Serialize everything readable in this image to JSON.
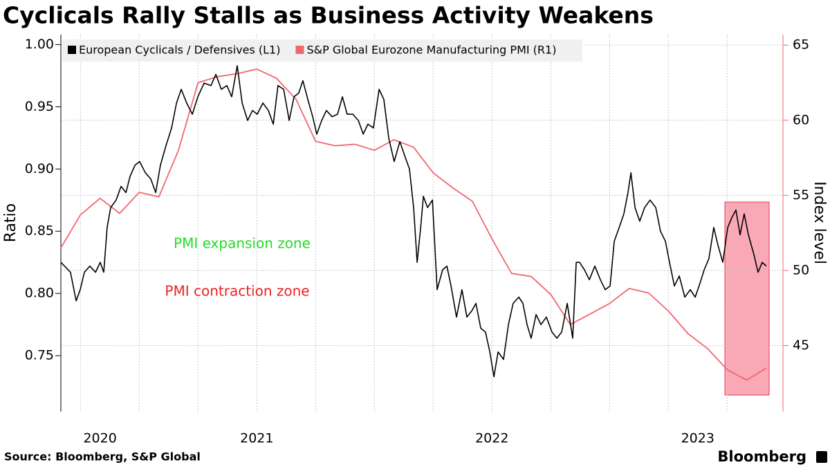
{
  "chart_data": {
    "type": "line",
    "title": "Cyclicals Rally Stalls as Business Activity Weakens",
    "source": "Source: Bloomberg, S&P Global",
    "brand": "Bloomberg",
    "ylabel": "Ratio",
    "y2label": "Index level",
    "legend": "upper left",
    "grid": true,
    "xlim": [
      0,
      36.85
    ],
    "xticks": [
      {
        "value": 2,
        "label": "2020"
      },
      {
        "value": 10,
        "label": "2021"
      },
      {
        "value": 22,
        "label": "2022"
      },
      {
        "value": 32.5,
        "label": "2023"
      }
    ],
    "ylim": [
      0.705,
      1.008
    ],
    "yticks": [
      {
        "value": 1,
        "label": "1.00"
      },
      0.95,
      {
        "value": 0.9,
        "label": "0.90"
      },
      0.85,
      {
        "value": 0.8,
        "label": "0.80"
      },
      0.75
    ],
    "y2lim": [
      40.6,
      65.7
    ],
    "y2ticks": [
      45,
      50,
      55,
      60,
      65
    ],
    "annotations": [
      {
        "text": "PMI expansion zone",
        "color": "#22dd22"
      },
      {
        "text": "PMI contraction zone",
        "color": "#ee2222"
      }
    ],
    "series": [
      {
        "name": "European Cyclicals / Defensives (L1)",
        "color": "#000000",
        "axis": "y",
        "x": [
          0,
          0.25,
          0.49,
          0.78,
          0.99,
          1.2,
          1.48,
          1.77,
          2.01,
          2.19,
          2.36,
          2.54,
          2.82,
          3.07,
          3.32,
          3.53,
          3.78,
          4.02,
          4.31,
          4.59,
          4.84,
          5.08,
          5.37,
          5.65,
          5.9,
          6.14,
          6.42,
          6.71,
          6.99,
          7.31,
          7.66,
          7.91,
          8.19,
          8.47,
          8.72,
          9,
          9.25,
          9.53,
          9.78,
          10.02,
          10.31,
          10.59,
          10.84,
          11.08,
          11.37,
          11.65,
          11.9,
          12.14,
          12.35,
          12.6,
          12.85,
          13.06,
          13.31,
          13.55,
          13.84,
          14.12,
          14.37,
          14.61,
          14.9,
          15.18,
          15.43,
          15.67,
          15.95,
          16.24,
          16.48,
          16.73,
          17.01,
          17.3,
          17.54,
          17.79,
          18,
          18.18,
          18.36,
          18.5,
          18.71,
          18.96,
          19.2,
          19.48,
          19.7,
          19.91,
          20.19,
          20.47,
          20.72,
          20.97,
          21.18,
          21.43,
          21.67,
          21.89,
          22.1,
          22.31,
          22.59,
          22.84,
          23.08,
          23.37,
          23.58,
          23.79,
          24,
          24.25,
          24.5,
          24.78,
          25.06,
          25.31,
          25.56,
          25.84,
          26.12,
          26.3,
          26.47,
          26.72,
          26.97,
          27.25,
          27.53,
          27.78,
          28.03,
          28.24,
          28.49,
          28.73,
          28.94,
          29.09,
          29.3,
          29.54,
          29.79,
          30.07,
          30.36,
          30.6,
          30.85,
          31.06,
          31.31,
          31.56,
          31.84,
          32.12,
          32.37,
          32.61,
          32.83,
          33.07,
          33.32,
          33.53,
          33.78,
          34.03,
          34.24,
          34.45,
          34.66,
          34.87,
          35.09,
          35.37,
          35.58,
          35.79,
          36
        ],
        "values": [
          0.825,
          0.821,
          0.817,
          0.794,
          0.803,
          0.817,
          0.822,
          0.817,
          0.825,
          0.817,
          0.853,
          0.869,
          0.875,
          0.886,
          0.881,
          0.894,
          0.903,
          0.906,
          0.897,
          0.892,
          0.881,
          0.903,
          0.919,
          0.933,
          0.953,
          0.964,
          0.953,
          0.944,
          0.958,
          0.969,
          0.967,
          0.976,
          0.964,
          0.967,
          0.958,
          0.983,
          0.953,
          0.939,
          0.947,
          0.944,
          0.953,
          0.947,
          0.936,
          0.967,
          0.964,
          0.939,
          0.958,
          0.961,
          0.971,
          0.956,
          0.942,
          0.928,
          0.939,
          0.947,
          0.942,
          0.944,
          0.958,
          0.944,
          0.944,
          0.939,
          0.928,
          0.936,
          0.933,
          0.964,
          0.956,
          0.925,
          0.906,
          0.922,
          0.911,
          0.9,
          0.869,
          0.825,
          0.853,
          0.878,
          0.869,
          0.875,
          0.803,
          0.819,
          0.822,
          0.806,
          0.781,
          0.803,
          0.781,
          0.786,
          0.792,
          0.772,
          0.769,
          0.753,
          0.733,
          0.753,
          0.747,
          0.775,
          0.792,
          0.797,
          0.792,
          0.775,
          0.764,
          0.783,
          0.775,
          0.781,
          0.769,
          0.764,
          0.769,
          0.792,
          0.764,
          0.825,
          0.825,
          0.819,
          0.811,
          0.822,
          0.811,
          0.803,
          0.806,
          0.842,
          0.853,
          0.864,
          0.881,
          0.897,
          0.869,
          0.858,
          0.869,
          0.875,
          0.869,
          0.85,
          0.842,
          0.825,
          0.806,
          0.814,
          0.797,
          0.803,
          0.797,
          0.808,
          0.819,
          0.828,
          0.853,
          0.839,
          0.825,
          0.853,
          0.861,
          0.867,
          0.847,
          0.864,
          0.847,
          0.831,
          0.817,
          0.825,
          0.822
        ]
      },
      {
        "name": "S&P Global Eurozone Manufacturing PMI (R1)",
        "color": "#f0676e",
        "axis": "y2",
        "x": [
          0,
          1,
          2,
          3,
          4,
          5,
          6,
          7,
          8,
          9,
          10,
          11,
          12,
          13,
          14,
          15,
          16,
          17,
          18,
          19,
          20,
          21,
          22,
          23,
          24,
          25,
          26,
          27,
          28,
          29,
          30,
          31,
          32,
          33,
          34,
          35,
          36
        ],
        "values": [
          51.5,
          53.7,
          54.8,
          53.8,
          55.2,
          54.9,
          58,
          62.5,
          62.9,
          63.1,
          63.4,
          62.8,
          61.4,
          58.6,
          58.3,
          58.4,
          58,
          58.7,
          58.2,
          56.5,
          55.5,
          54.6,
          52.1,
          49.8,
          49.6,
          48.4,
          46.4,
          47.1,
          47.8,
          48.8,
          48.5,
          47.3,
          45.8,
          44.8,
          43.4,
          42.7,
          43.5
        ]
      }
    ]
  }
}
